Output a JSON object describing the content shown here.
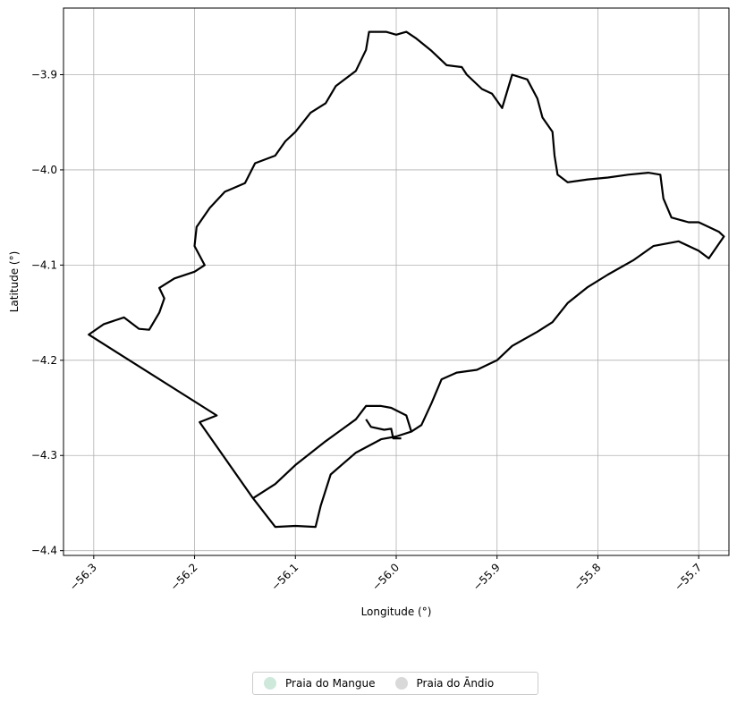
{
  "chart_data": {
    "type": "map",
    "xlabel": "Longitude (°)",
    "ylabel": "Latitude (°)",
    "xlim": [
      -56.33,
      -55.67
    ],
    "ylim": [
      -4.405,
      -3.83
    ],
    "xticks": [
      -56.3,
      -56.2,
      -56.1,
      -56.0,
      -55.9,
      -55.8,
      -55.7
    ],
    "yticks": [
      -3.9,
      -4.0,
      -4.1,
      -4.2,
      -4.3,
      -4.4
    ],
    "xtick_labels": [
      "−56.3",
      "−56.2",
      "−56.1",
      "−56.0",
      "−55.9",
      "−55.8",
      "−55.7"
    ],
    "ytick_labels": [
      "−3.9",
      "−4.0",
      "−4.1",
      "−4.2",
      "−4.3",
      "−4.4"
    ],
    "grid": true,
    "legend_position": "bottom-center",
    "legend": [
      {
        "label": "Praia do Mangue",
        "color": "#cfe8dc"
      },
      {
        "label": "Praia do Āndio",
        "color": "#d9d9d9"
      }
    ],
    "boundary_outline": [
      [
        -56.305,
        -4.173
      ],
      [
        -56.29,
        -4.162
      ],
      [
        -56.27,
        -4.155
      ],
      [
        -56.255,
        -4.167
      ],
      [
        -56.245,
        -4.168
      ],
      [
        -56.235,
        -4.15
      ],
      [
        -56.23,
        -4.135
      ],
      [
        -56.235,
        -4.124
      ],
      [
        -56.22,
        -4.114
      ],
      [
        -56.2,
        -4.107
      ],
      [
        -56.19,
        -4.1
      ],
      [
        -56.2,
        -4.08
      ],
      [
        -56.198,
        -4.06
      ],
      [
        -56.185,
        -4.04
      ],
      [
        -56.17,
        -4.023
      ],
      [
        -56.15,
        -4.014
      ],
      [
        -56.14,
        -3.993
      ],
      [
        -56.12,
        -3.985
      ],
      [
        -56.11,
        -3.97
      ],
      [
        -56.1,
        -3.96
      ],
      [
        -56.085,
        -3.94
      ],
      [
        -56.07,
        -3.93
      ],
      [
        -56.06,
        -3.912
      ],
      [
        -56.04,
        -3.896
      ],
      [
        -56.03,
        -3.874
      ],
      [
        -56.027,
        -3.855
      ],
      [
        -56.01,
        -3.855
      ],
      [
        -56.0,
        -3.858
      ],
      [
        -55.99,
        -3.855
      ],
      [
        -55.98,
        -3.862
      ],
      [
        -55.965,
        -3.875
      ],
      [
        -55.95,
        -3.89
      ],
      [
        -55.935,
        -3.892
      ],
      [
        -55.93,
        -3.9
      ],
      [
        -55.915,
        -3.915
      ],
      [
        -55.905,
        -3.92
      ],
      [
        -55.895,
        -3.935
      ],
      [
        -55.885,
        -3.9
      ],
      [
        -55.87,
        -3.905
      ],
      [
        -55.86,
        -3.925
      ],
      [
        -55.855,
        -3.945
      ],
      [
        -55.845,
        -3.96
      ],
      [
        -55.843,
        -3.985
      ],
      [
        -55.84,
        -4.005
      ],
      [
        -55.83,
        -4.013
      ],
      [
        -55.81,
        -4.01
      ],
      [
        -55.79,
        -4.008
      ],
      [
        -55.77,
        -4.005
      ],
      [
        -55.75,
        -4.003
      ],
      [
        -55.738,
        -4.005
      ],
      [
        -55.735,
        -4.03
      ],
      [
        -55.727,
        -4.05
      ],
      [
        -55.71,
        -4.055
      ],
      [
        -55.7,
        -4.055
      ],
      [
        -55.68,
        -4.065
      ],
      [
        -55.675,
        -4.07
      ],
      [
        -55.69,
        -4.093
      ],
      [
        -55.7,
        -4.085
      ],
      [
        -55.72,
        -4.075
      ],
      [
        -55.745,
        -4.08
      ],
      [
        -55.765,
        -4.095
      ],
      [
        -55.79,
        -4.11
      ],
      [
        -55.81,
        -4.123
      ],
      [
        -55.83,
        -4.14
      ],
      [
        -55.845,
        -4.16
      ],
      [
        -55.86,
        -4.17
      ],
      [
        -55.885,
        -4.185
      ],
      [
        -55.9,
        -4.2
      ],
      [
        -55.92,
        -4.21
      ],
      [
        -55.94,
        -4.213
      ],
      [
        -55.955,
        -4.22
      ],
      [
        -55.965,
        -4.245
      ],
      [
        -55.975,
        -4.268
      ],
      [
        -55.985,
        -4.275
      ],
      [
        -56.0,
        -4.28
      ],
      [
        -56.015,
        -4.283
      ],
      [
        -56.04,
        -4.297
      ],
      [
        -56.065,
        -4.32
      ],
      [
        -56.075,
        -4.353
      ],
      [
        -56.08,
        -4.375
      ],
      [
        -56.1,
        -4.374
      ],
      [
        -56.12,
        -4.375
      ],
      [
        -56.142,
        -4.345
      ],
      [
        -56.195,
        -4.265
      ],
      [
        -56.178,
        -4.258
      ],
      [
        -56.305,
        -4.173
      ]
    ],
    "inner_line": [
      [
        -56.142,
        -4.345
      ],
      [
        -56.12,
        -4.33
      ],
      [
        -56.1,
        -4.31
      ],
      [
        -56.07,
        -4.285
      ],
      [
        -56.04,
        -4.262
      ],
      [
        -56.03,
        -4.248
      ],
      [
        -56.015,
        -4.248
      ],
      [
        -56.005,
        -4.25
      ],
      [
        -55.99,
        -4.258
      ],
      [
        -55.985,
        -4.275
      ]
    ],
    "inner_line_2": [
      [
        -56.03,
        -4.262
      ],
      [
        -56.025,
        -4.27
      ],
      [
        -56.012,
        -4.273
      ],
      [
        -56.005,
        -4.272
      ],
      [
        -56.003,
        -4.282
      ],
      [
        -55.995,
        -4.282
      ]
    ]
  }
}
